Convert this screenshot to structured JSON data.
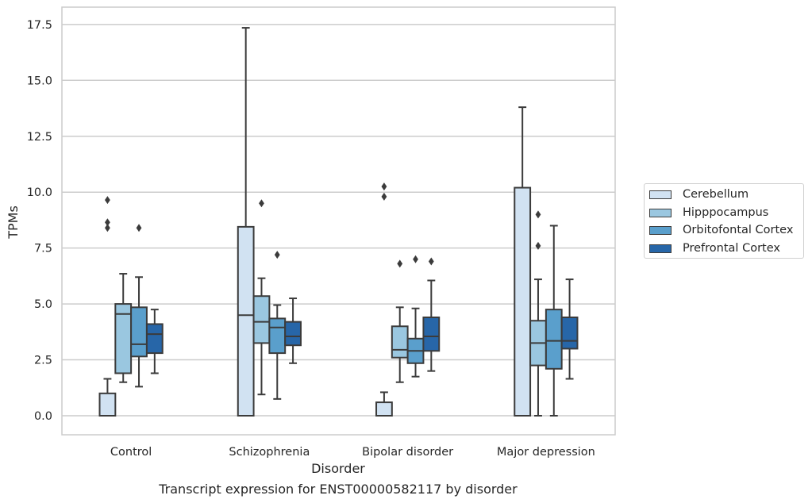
{
  "chart_data": {
    "type": "box",
    "title": "Transcript expression for ENST00000582117 by disorder",
    "xlabel": "Disorder",
    "ylabel": "TPMs",
    "ylim": [
      -0.8,
      18.3
    ],
    "yticks": [
      0.0,
      2.5,
      5.0,
      7.5,
      10.0,
      12.5,
      15.0,
      17.5
    ],
    "ytick_labels": [
      "0.0",
      "2.5",
      "5.0",
      "7.5",
      "10.0",
      "12.5",
      "15.0",
      "17.5"
    ],
    "grid": true,
    "legend_position": "outside-right",
    "categories": [
      "Control",
      "Schizophrenia",
      "Bipolar disorder",
      "Major depression"
    ],
    "series": [
      {
        "name": "Cerebellum",
        "color": "#d1e2f2",
        "boxes": [
          {
            "min": 0.0,
            "q1": 0.0,
            "median": 0.0,
            "q3": 1.0,
            "max": 1.65,
            "outliers": [
              9.65,
              8.65,
              8.4
            ]
          },
          {
            "min": 0.0,
            "q1": 0.0,
            "median": 4.5,
            "q3": 8.45,
            "max": 17.35,
            "outliers": []
          },
          {
            "min": 0.0,
            "q1": 0.0,
            "median": 0.0,
            "q3": 0.6,
            "max": 1.05,
            "outliers": [
              10.25,
              9.8
            ]
          },
          {
            "min": 0.0,
            "q1": 0.0,
            "median": 0.0,
            "q3": 10.2,
            "max": 13.8,
            "outliers": []
          }
        ]
      },
      {
        "name": "Hipppocampus",
        "color": "#9ac7e0",
        "boxes": [
          {
            "min": 1.5,
            "q1": 1.9,
            "median": 4.55,
            "q3": 5.0,
            "max": 6.35,
            "outliers": []
          },
          {
            "min": 0.95,
            "q1": 3.25,
            "median": 4.2,
            "q3": 5.35,
            "max": 6.15,
            "outliers": [
              9.5
            ]
          },
          {
            "min": 1.5,
            "q1": 2.6,
            "median": 2.95,
            "q3": 4.0,
            "max": 4.85,
            "outliers": [
              6.8
            ]
          },
          {
            "min": 0.0,
            "q1": 2.25,
            "median": 3.25,
            "q3": 4.25,
            "max": 6.1,
            "outliers": [
              9.0,
              7.6
            ]
          }
        ]
      },
      {
        "name": "Orbitofontal Cortex",
        "color": "#5a9fcc",
        "boxes": [
          {
            "min": 1.3,
            "q1": 2.65,
            "median": 3.2,
            "q3": 4.85,
            "max": 6.2,
            "outliers": [
              8.4
            ]
          },
          {
            "min": 0.75,
            "q1": 2.8,
            "median": 3.95,
            "q3": 4.35,
            "max": 4.95,
            "outliers": [
              7.2
            ]
          },
          {
            "min": 1.75,
            "q1": 2.35,
            "median": 2.9,
            "q3": 3.45,
            "max": 4.8,
            "outliers": [
              7.0
            ]
          },
          {
            "min": 0.0,
            "q1": 2.1,
            "median": 3.35,
            "q3": 4.75,
            "max": 8.5,
            "outliers": []
          }
        ]
      },
      {
        "name": "Prefrontal Cortex",
        "color": "#2766a8",
        "boxes": [
          {
            "min": 1.9,
            "q1": 2.8,
            "median": 3.65,
            "q3": 4.1,
            "max": 4.75,
            "outliers": []
          },
          {
            "min": 2.35,
            "q1": 3.15,
            "median": 3.55,
            "q3": 4.2,
            "max": 5.25,
            "outliers": []
          },
          {
            "min": 2.0,
            "q1": 2.9,
            "median": 3.55,
            "q3": 4.4,
            "max": 6.05,
            "outliers": [
              6.9
            ]
          },
          {
            "min": 1.65,
            "q1": 3.0,
            "median": 3.35,
            "q3": 4.4,
            "max": 6.1,
            "outliers": []
          }
        ]
      }
    ]
  }
}
